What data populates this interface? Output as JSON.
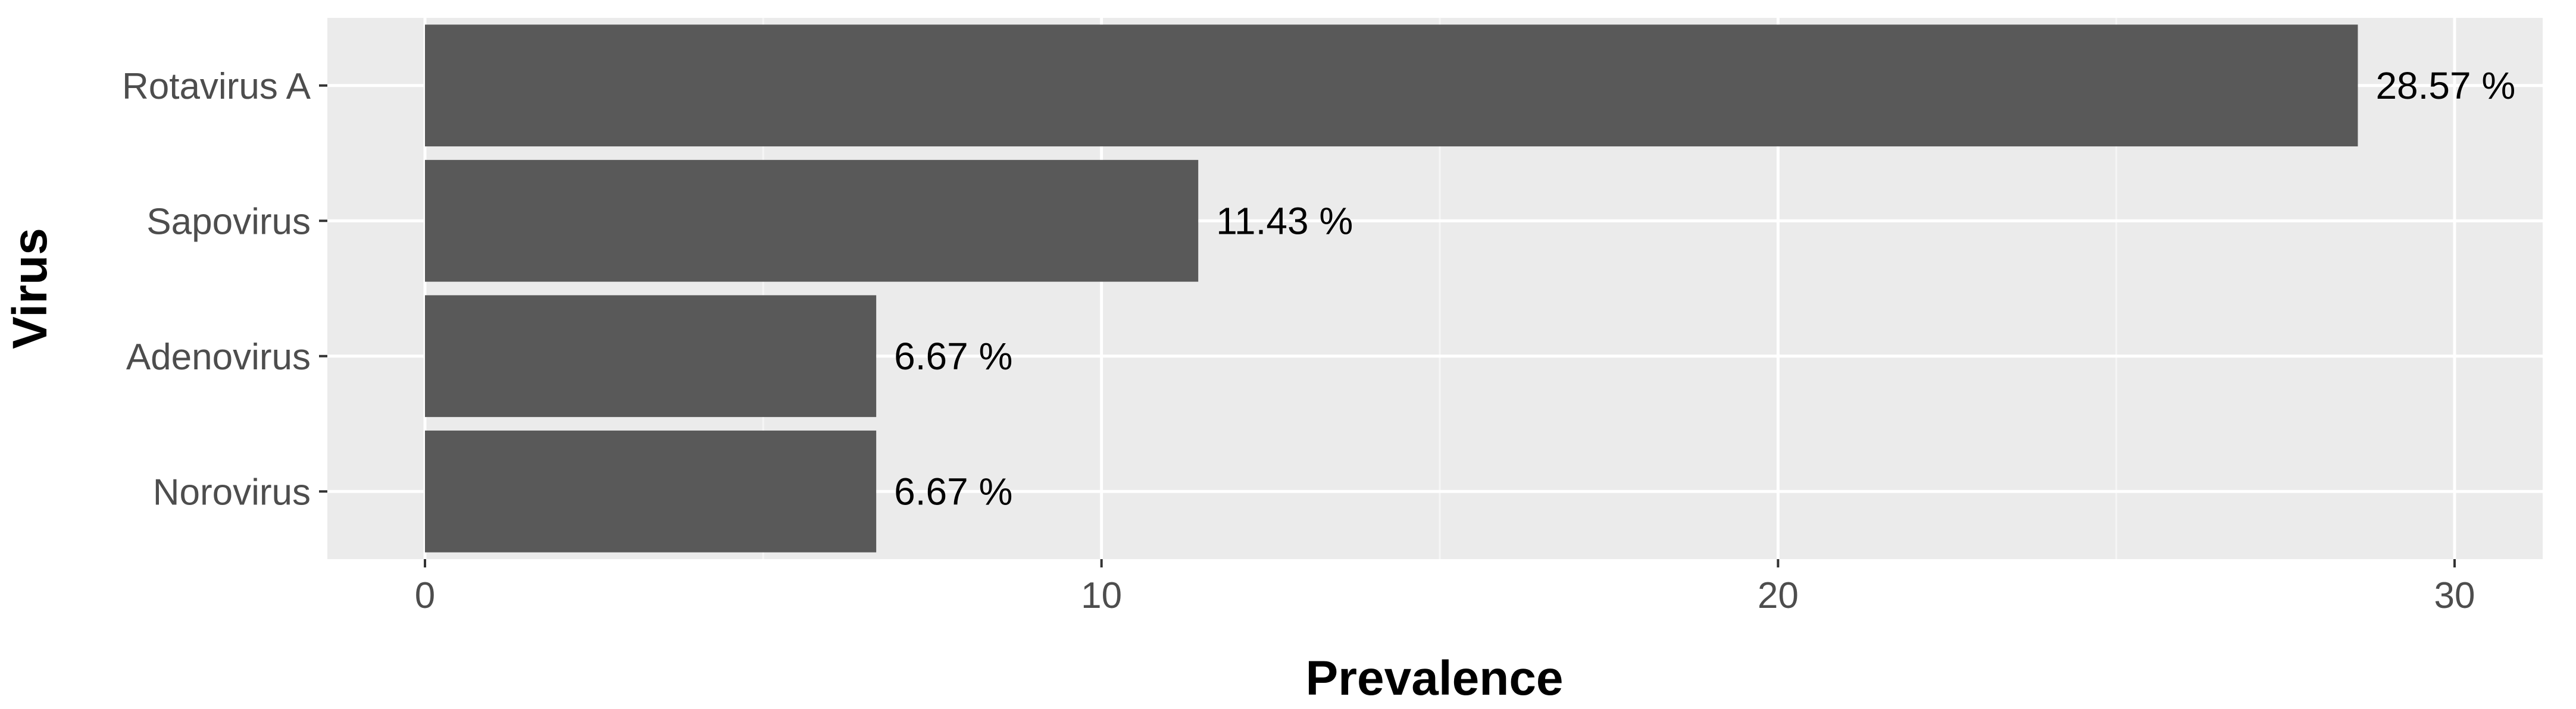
{
  "chart_data": {
    "type": "bar",
    "orientation": "horizontal",
    "xlabel": "Prevalence",
    "ylabel": "Virus",
    "categories": [
      "Rotavirus A",
      "Sapovirus",
      "Adenovirus",
      "Norovirus"
    ],
    "values": [
      28.57,
      11.43,
      6.67,
      6.67
    ],
    "data_labels": [
      "28.57 %",
      "11.43 %",
      "6.67 %",
      "6.67 %"
    ],
    "xticks": [
      0,
      10,
      20,
      30
    ],
    "xtick_labels": [
      "0",
      "10",
      "20",
      "30"
    ],
    "xlim": [
      -1.43,
      30.87
    ],
    "grid": true,
    "legend": "none"
  },
  "colors": {
    "bar": "#595959",
    "panel_background": "#ebebeb",
    "grid_major": "#ffffff",
    "grid_minor": "#f5f5f5",
    "tick_text": "#4d4d4d",
    "title_text": "#000000"
  }
}
